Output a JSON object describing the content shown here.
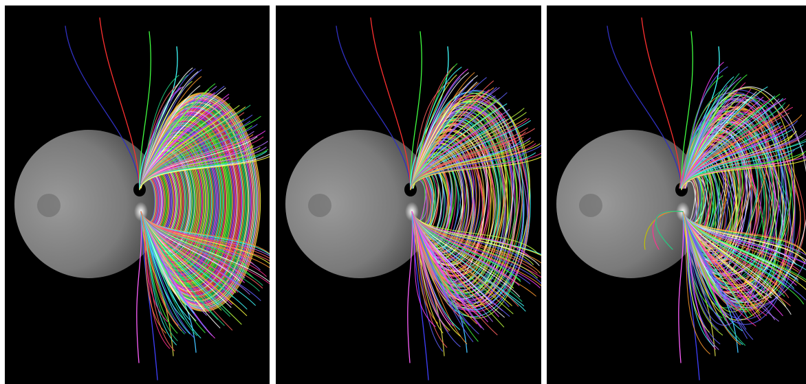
{
  "figure": {
    "layout": "three-panel-row",
    "background": "#000000",
    "separator_color": "#ffffff",
    "subject": "field-lines-around-sphere",
    "sphere_color": "#8a8a8a",
    "line_palette": [
      "#ff40ff",
      "#40ffff",
      "#ffff40",
      "#40ff40",
      "#ff6060",
      "#6060ff",
      "#ff9a30",
      "#b070ff",
      "#ffffff",
      "#20d080",
      "#ff3090",
      "#c0ff40"
    ],
    "panels": [
      {
        "id": "panel-0",
        "state": "ordered-dipole-loops"
      },
      {
        "id": "panel-1",
        "state": "twisted-loops"
      },
      {
        "id": "panel-2",
        "state": "tangled-loops"
      }
    ]
  }
}
